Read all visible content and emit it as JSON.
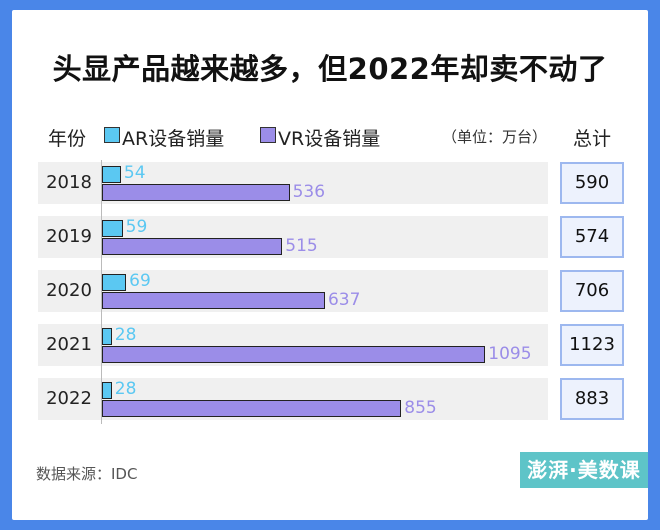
{
  "title": "头显产品越来越多，但2022年却卖不动了",
  "header": {
    "year_label": "年份",
    "unit": "（单位：万台）",
    "total_label": "总计"
  },
  "source": "数据来源：IDC",
  "logo_text": "澎湃·美数课",
  "colors": {
    "ar": "#5bc8f2",
    "vr": "#9b8de8",
    "background": "#4a86e8"
  },
  "chart_data": {
    "type": "bar",
    "orientation": "horizontal",
    "categories": [
      "2018",
      "2019",
      "2020",
      "2021",
      "2022"
    ],
    "series": [
      {
        "name": "AR设备销量",
        "values": [
          54,
          59,
          69,
          28,
          28
        ]
      },
      {
        "name": "VR设备销量",
        "values": [
          536,
          515,
          637,
          1095,
          855
        ]
      }
    ],
    "totals": [
      590,
      574,
      706,
      1123,
      883
    ],
    "xlim": [
      0,
      1100
    ]
  }
}
